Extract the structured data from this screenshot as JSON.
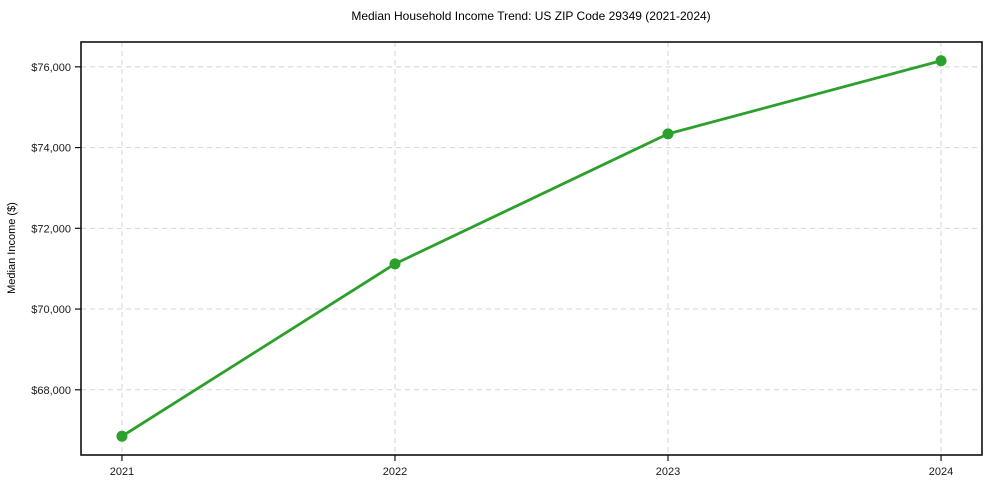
{
  "chart_data": {
    "type": "line",
    "title": "Median Household Income Trend: US ZIP Code 29349 (2021-2024)",
    "xlabel": "",
    "ylabel": "Median Income ($)",
    "x": [
      2021,
      2022,
      2023,
      2024
    ],
    "xtick_labels": [
      "2021",
      "2022",
      "2023",
      "2024"
    ],
    "series": [
      {
        "name": "Median Household Income",
        "values": [
          66850,
          71120,
          74340,
          76150
        ],
        "color": "#2ca02c",
        "marker": "circle"
      }
    ],
    "yticks": [
      68000,
      70000,
      72000,
      74000,
      76000
    ],
    "ytick_labels": [
      "$68,000",
      "$70,000",
      "$72,000",
      "$74,000",
      "$76,000"
    ],
    "ylim": [
      66385,
      76615
    ],
    "x_margin_frac": 0.04545,
    "grid": "dashed",
    "legend_position": "none",
    "colors": {
      "line": "#2ca02c",
      "grid": "#d4d4d4",
      "spine": "#111111",
      "text": "#1a1a1a",
      "background": "#ffffff"
    }
  }
}
